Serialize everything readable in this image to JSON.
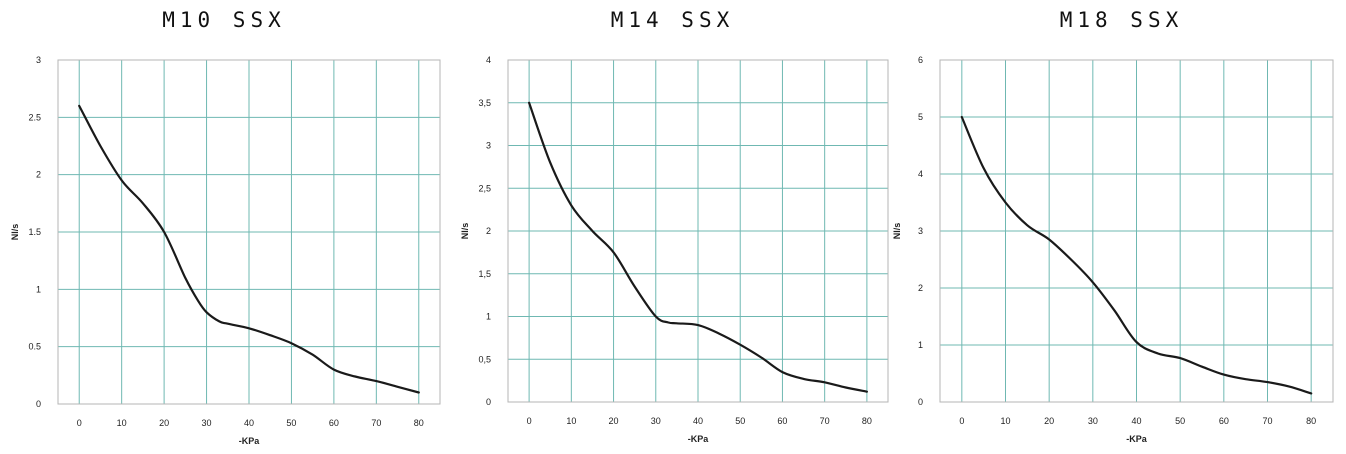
{
  "chart_data": [
    {
      "type": "line",
      "title": "M10 SSX",
      "xlabel": "-KPa",
      "ylabel": "Nl/s",
      "xlim": [
        -5,
        85
      ],
      "ylim": [
        0,
        3
      ],
      "xticks": [
        0,
        10,
        20,
        30,
        40,
        50,
        60,
        70,
        80
      ],
      "yticks": [
        0,
        0.5,
        1,
        1.5,
        2,
        2.5,
        3
      ],
      "ytick_labels": [
        "0",
        "0.5",
        "1",
        "1.5",
        "2",
        "2.5",
        "3"
      ],
      "grid": true,
      "series": [
        {
          "x": [
            0,
            5,
            10,
            15,
            20,
            25,
            28,
            30,
            33,
            35,
            40,
            45,
            50,
            55,
            60,
            65,
            70,
            75,
            80
          ],
          "y": [
            2.6,
            2.25,
            1.95,
            1.75,
            1.5,
            1.1,
            0.9,
            0.8,
            0.72,
            0.7,
            0.66,
            0.6,
            0.53,
            0.43,
            0.3,
            0.24,
            0.2,
            0.15,
            0.1
          ]
        }
      ]
    },
    {
      "type": "line",
      "title": "M14 SSX",
      "xlabel": "-KPa",
      "ylabel": "Nl/s",
      "xlim": [
        -5,
        85
      ],
      "ylim": [
        0,
        4
      ],
      "xticks": [
        0,
        10,
        20,
        30,
        40,
        50,
        60,
        70,
        80
      ],
      "yticks": [
        0,
        0.5,
        1,
        1.5,
        2,
        2.5,
        3,
        3.5,
        4
      ],
      "ytick_labels": [
        "0",
        "0,5",
        "1",
        "1,5",
        "2",
        "2,5",
        "3",
        "3,5",
        "4"
      ],
      "grid": true,
      "series": [
        {
          "x": [
            0,
            5,
            10,
            15,
            20,
            25,
            30,
            33,
            35,
            40,
            45,
            50,
            55,
            60,
            65,
            70,
            75,
            80
          ],
          "y": [
            3.5,
            2.8,
            2.3,
            2.0,
            1.75,
            1.35,
            1.0,
            0.93,
            0.92,
            0.9,
            0.8,
            0.67,
            0.52,
            0.35,
            0.27,
            0.23,
            0.17,
            0.12
          ]
        }
      ]
    },
    {
      "type": "line",
      "title": "M18 SSX",
      "xlabel": "-KPa",
      "ylabel": "Nl/s",
      "xlim": [
        -5,
        85
      ],
      "ylim": [
        0,
        6
      ],
      "xticks": [
        0,
        10,
        20,
        30,
        40,
        50,
        60,
        70,
        80
      ],
      "yticks": [
        0,
        1,
        2,
        3,
        4,
        5,
        6
      ],
      "ytick_labels": [
        "0",
        "1",
        "2",
        "3",
        "4",
        "5",
        "6"
      ],
      "grid": true,
      "series": [
        {
          "x": [
            0,
            5,
            10,
            15,
            20,
            25,
            30,
            35,
            40,
            45,
            50,
            55,
            60,
            65,
            70,
            75,
            80
          ],
          "y": [
            5.0,
            4.1,
            3.5,
            3.1,
            2.85,
            2.5,
            2.1,
            1.6,
            1.05,
            0.85,
            0.77,
            0.62,
            0.48,
            0.4,
            0.35,
            0.27,
            0.15
          ]
        }
      ]
    }
  ],
  "colors": {
    "grid": "#6fb8b2",
    "frame": "#b5b5b5",
    "line": "#1a1a1a"
  }
}
